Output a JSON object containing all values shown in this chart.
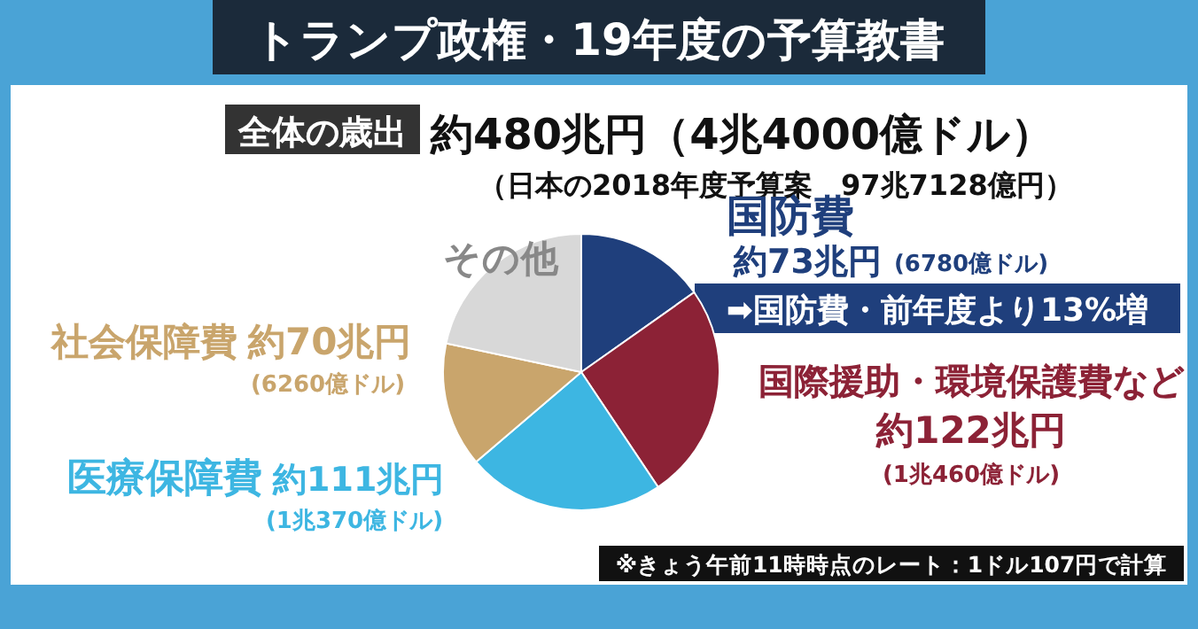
{
  "chart_data": {
    "type": "pie",
    "title": "トランプ政権・19年度の予算教書",
    "subtitle": "全体の歳出",
    "annotations": [
      "約480兆円（4兆4000億ドル）",
      "（日本の2018年度予算案　97兆7128億円）",
      "➡国防費・前年度より13%増",
      "※きょう午前11時時点のレート：1ドル107円で計算",
      "(6780億ドル)",
      "(1兆460億ドル)",
      "(1兆370億ドル)",
      "(6260億ドル)"
    ],
    "categories": [
      "国防費",
      "国際援助・環境保護費など",
      "医療保障費",
      "社会保障費",
      "その他"
    ],
    "values": [
      73,
      122,
      111,
      70,
      104
    ],
    "value_labels": [
      "約73兆円",
      "約122兆円",
      "約111兆円",
      "約70兆円",
      null
    ],
    "colors": [
      "#1f3f7c",
      "#8c2236",
      "#3db6e2",
      "#c9a56c",
      "#d8d8d8"
    ]
  }
}
